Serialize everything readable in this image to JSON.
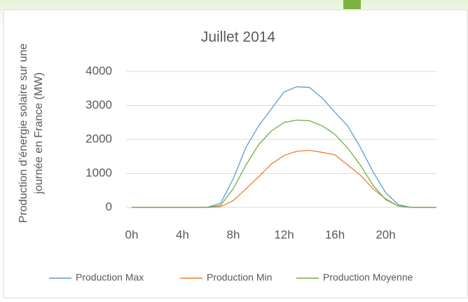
{
  "chart_data": {
    "type": "line",
    "title": "Juillet 2014",
    "ylabel": [
      "Production d’énergie solaire sur une",
      "journée en France (MW)"
    ],
    "x": [
      0,
      1,
      2,
      3,
      4,
      5,
      6,
      7,
      8,
      9,
      10,
      11,
      12,
      13,
      14,
      15,
      16,
      17,
      18,
      19,
      20,
      21,
      22,
      23,
      24
    ],
    "series": [
      {
        "name": "Production Max",
        "color": "#5b9bd5",
        "values": [
          0,
          0,
          0,
          0,
          0,
          0,
          10,
          120,
          850,
          1770,
          2400,
          2900,
          3400,
          3550,
          3530,
          3220,
          2800,
          2400,
          1770,
          1050,
          430,
          80,
          0,
          0,
          0
        ]
      },
      {
        "name": "Production Min",
        "color": "#ed7d31",
        "values": [
          0,
          0,
          0,
          0,
          0,
          0,
          0,
          20,
          200,
          550,
          900,
          1280,
          1530,
          1650,
          1680,
          1620,
          1550,
          1250,
          950,
          550,
          250,
          40,
          0,
          0,
          0
        ]
      },
      {
        "name": "Production Moyenne",
        "color": "#70ad47",
        "values": [
          0,
          0,
          0,
          0,
          0,
          0,
          5,
          60,
          550,
          1250,
          1850,
          2250,
          2500,
          2570,
          2550,
          2400,
          2150,
          1750,
          1250,
          650,
          230,
          40,
          0,
          0,
          0
        ]
      }
    ],
    "xlim": [
      0,
      24
    ],
    "xticks": [
      {
        "value": 0,
        "label": "0h"
      },
      {
        "value": 4,
        "label": "4h"
      },
      {
        "value": 8,
        "label": "8h"
      },
      {
        "value": 12,
        "label": "12h"
      },
      {
        "value": 16,
        "label": "16h"
      },
      {
        "value": 20,
        "label": "20h"
      }
    ],
    "ylim": [
      0,
      4000
    ],
    "yticks": [
      0,
      1000,
      2000,
      3000,
      4000
    ],
    "grid": true,
    "legend": "bottom"
  }
}
